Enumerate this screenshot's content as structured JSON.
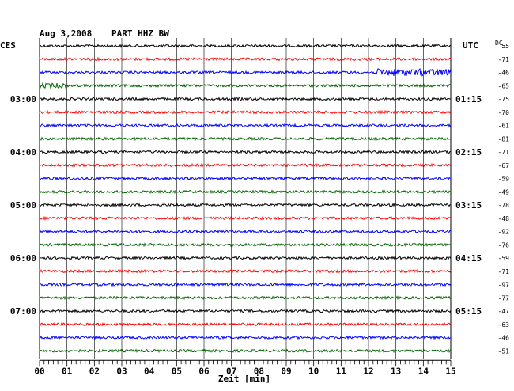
{
  "header": {
    "date": "Aug 3,2008",
    "station": "PART HHZ BW",
    "left_tz": "CES",
    "right_tz": "UTC",
    "dc_label": "DC"
  },
  "chart_data": {
    "type": "line",
    "title": "Aug 3,2008  PART HHZ BW",
    "xlabel": "Zeit [min]",
    "xlim": [
      0,
      15
    ],
    "x_ticks": [
      "00",
      "01",
      "02",
      "03",
      "04",
      "05",
      "06",
      "07",
      "08",
      "09",
      "10",
      "11",
      "12",
      "13",
      "14",
      "15"
    ],
    "left_time_labels": [
      "03:00",
      "04:00",
      "05:00",
      "06:00",
      "07:00"
    ],
    "right_time_labels": [
      "01:15",
      "02:15",
      "03:15",
      "04:15",
      "05:15"
    ],
    "trace_colors": [
      "#000000",
      "#ff0000",
      "#0000ff",
      "#006400"
    ],
    "dc_offsets": [
      55,
      -71,
      -46,
      -65,
      -75,
      -70,
      -61,
      -81,
      -71,
      -67,
      -59,
      -49,
      -78,
      -48,
      -92,
      -76,
      -59,
      -71,
      -97,
      -77,
      -47,
      -63,
      -46,
      -51
    ],
    "grid": true,
    "traces_count": 24
  }
}
